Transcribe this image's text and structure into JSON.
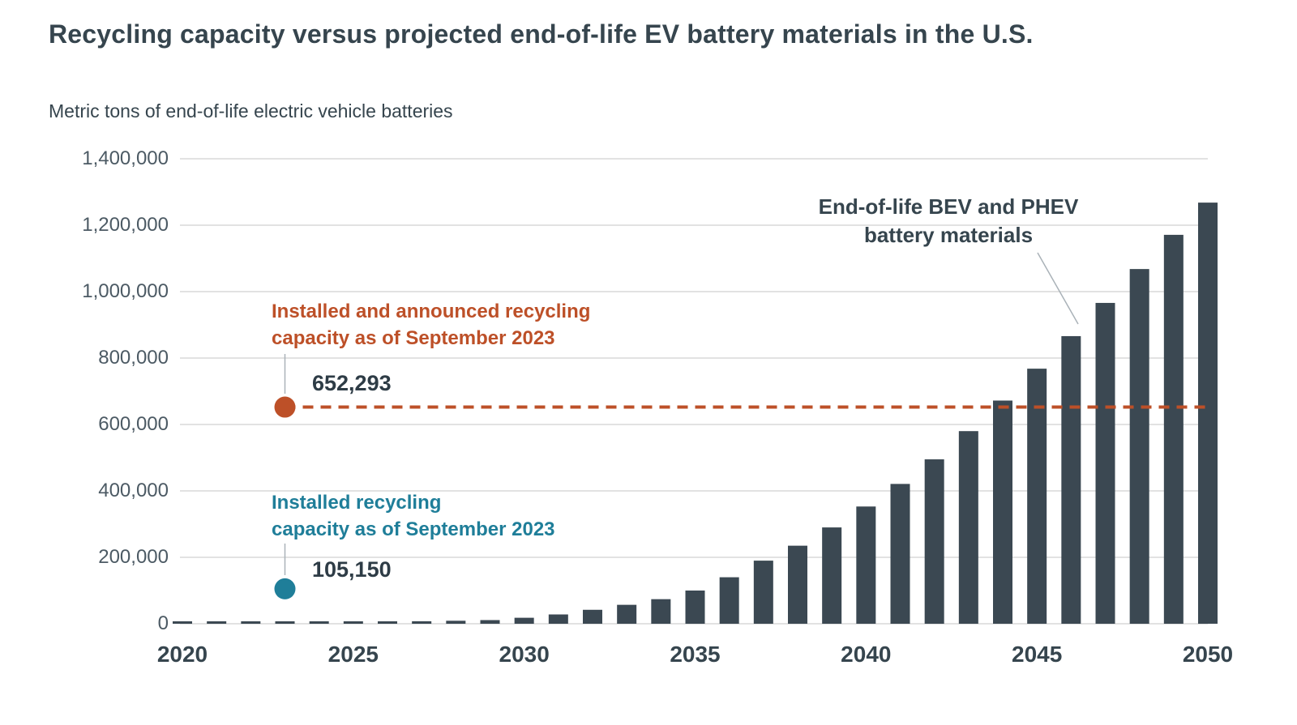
{
  "page": {
    "title": "Recycling capacity versus projected end-of-life EV battery materials in the U.S.",
    "y_axis_title": "Metric tons of end-of-life electric vehicle batteries"
  },
  "annotations": {
    "series_label": {
      "line1": "End-of-life BEV and PHEV",
      "line2": "battery materials"
    },
    "announced": {
      "line1": "Installed and announced recycling",
      "line2": "capacity as of September 2023",
      "value_label": "652,293",
      "value": 652293,
      "color": "#bd5028"
    },
    "installed": {
      "line1": "Installed recycling",
      "line2": "capacity as of September 2023",
      "value_label": "105,150",
      "value": 105150,
      "color": "#1f7e99"
    }
  },
  "chart_data": {
    "type": "bar",
    "title": "Recycling capacity versus projected end-of-life EV battery materials in the U.S.",
    "xlabel": "",
    "ylabel": "Metric tons of end-of-life electric vehicle batteries",
    "ylim": [
      0,
      1400000
    ],
    "grid": true,
    "grid_color": "#d9d9d9",
    "bar_color": "#3b4852",
    "y_ticks": [
      0,
      200000,
      400000,
      600000,
      800000,
      1000000,
      1200000,
      1400000
    ],
    "y_tick_labels": [
      "0",
      "200,000",
      "400,000",
      "600,000",
      "800,000",
      "1,000,000",
      "1,200,000",
      "1,400,000"
    ],
    "x_tick_labels": [
      "2020",
      "2025",
      "2030",
      "2035",
      "2040",
      "2045",
      "2050"
    ],
    "categories": [
      2020,
      2021,
      2022,
      2023,
      2024,
      2025,
      2026,
      2027,
      2028,
      2029,
      2030,
      2031,
      2032,
      2033,
      2034,
      2035,
      2036,
      2037,
      2038,
      2039,
      2040,
      2041,
      2042,
      2043,
      2044,
      2045,
      2046,
      2047,
      2048,
      2049,
      2050
    ],
    "series": [
      {
        "name": "End-of-life BEV and PHEV battery materials",
        "values": [
          1500,
          2000,
          2500,
          3000,
          4000,
          5000,
          6000,
          7500,
          9000,
          11000,
          18000,
          28000,
          42000,
          57000,
          74000,
          100000,
          140000,
          190000,
          235000,
          290000,
          353000,
          421000,
          495000,
          580000,
          672000,
          768000,
          866000,
          966000,
          1068000,
          1171000,
          1268000
        ]
      }
    ],
    "reference_lines": [
      {
        "label": "Installed and announced recycling capacity as of September 2023",
        "value": 652293,
        "style": "dashed",
        "color": "#bd5028",
        "marker_year": 2023
      },
      {
        "label": "Installed recycling capacity as of September 2023",
        "value": 105150,
        "style": "point",
        "color": "#1f7e99",
        "marker_year": 2023
      }
    ]
  }
}
